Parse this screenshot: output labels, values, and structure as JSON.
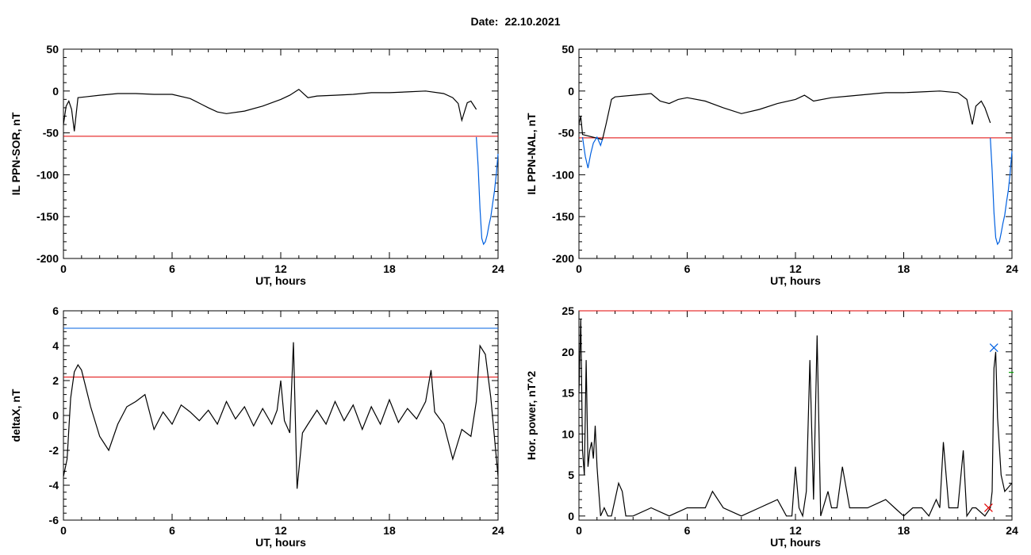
{
  "header": {
    "date_label": "Date:",
    "date_value": "22.10.2021"
  },
  "chart_data": [
    {
      "id": "p1",
      "type": "line",
      "xlabel": "UT, hours",
      "ylabel": "IL PPN-SOR, nT",
      "xlim": [
        0,
        24
      ],
      "ylim": [
        -200,
        50
      ],
      "xticks": [
        0,
        6,
        12,
        18,
        24
      ],
      "yticks": [
        -200,
        -150,
        -100,
        -50,
        0,
        50
      ],
      "thresholds": [
        {
          "y": -54,
          "color": "#e00000"
        }
      ],
      "series": [
        {
          "color": "#000000",
          "x": [
            0,
            0.15,
            0.3,
            0.45,
            0.6,
            0.8,
            1.2,
            2,
            3,
            4,
            5,
            6,
            7,
            8,
            8.5,
            9,
            10,
            11,
            12,
            12.5,
            13,
            13.5,
            14,
            15,
            16,
            17,
            18,
            19,
            20,
            21,
            21.5,
            21.8,
            22,
            22.3,
            22.5,
            22.8
          ],
          "y": [
            -40,
            -18,
            -12,
            -22,
            -48,
            -8,
            -7,
            -5,
            -3,
            -3,
            -4,
            -4,
            -9,
            -20,
            -25,
            -27,
            -24,
            -18,
            -10,
            -5,
            2,
            -8,
            -6,
            -5,
            -4,
            -2,
            -2,
            -1,
            0,
            -3,
            -8,
            -15,
            -35,
            -14,
            -12,
            -22
          ]
        },
        {
          "color": "#0060e0",
          "x": [
            22.8,
            22.9,
            23.0,
            23.1,
            23.2,
            23.3,
            23.4,
            23.5,
            23.6,
            23.7,
            23.8,
            23.9,
            24
          ],
          "y": [
            -55,
            -90,
            -140,
            -176,
            -183,
            -180,
            -172,
            -160,
            -150,
            -135,
            -120,
            -100,
            -75
          ]
        }
      ]
    },
    {
      "id": "p2",
      "type": "line",
      "xlabel": "UT, hours",
      "ylabel": "IL PPN-NAL, nT",
      "xlim": [
        0,
        24
      ],
      "ylim": [
        -200,
        50
      ],
      "xticks": [
        0,
        6,
        12,
        18,
        24
      ],
      "yticks": [
        -200,
        -150,
        -100,
        -50,
        0,
        50
      ],
      "thresholds": [
        {
          "y": -56,
          "color": "#e00000"
        }
      ],
      "series": [
        {
          "color": "#000000",
          "x": [
            0,
            0.1,
            0.2,
            1.3,
            1.5,
            1.8,
            2,
            3,
            4,
            4.5,
            5,
            5.5,
            6,
            7,
            8,
            9,
            10,
            11,
            12,
            12.5,
            13,
            14,
            15,
            16,
            17,
            18,
            19,
            20,
            21,
            21.5,
            21.8,
            22,
            22.3,
            22.5,
            22.8
          ],
          "y": [
            -40,
            -30,
            -52,
            -58,
            -40,
            -10,
            -7,
            -5,
            -3,
            -12,
            -15,
            -10,
            -8,
            -12,
            -20,
            -27,
            -22,
            -15,
            -10,
            -5,
            -12,
            -8,
            -6,
            -4,
            -2,
            -2,
            -1,
            0,
            -2,
            -10,
            -40,
            -18,
            -12,
            -20,
            -38
          ]
        },
        {
          "color": "#0060e0",
          "x": [
            0.2,
            0.35,
            0.5,
            0.65,
            0.8,
            1.0,
            1.2,
            1.3
          ],
          "y": [
            -55,
            -78,
            -92,
            -75,
            -62,
            -55,
            -65,
            -58
          ]
        },
        {
          "color": "#0060e0",
          "x": [
            22.8,
            22.9,
            23.0,
            23.1,
            23.2,
            23.3,
            23.4,
            23.5,
            23.6,
            23.7,
            23.8,
            23.9,
            24
          ],
          "y": [
            -56,
            -95,
            -145,
            -175,
            -183,
            -180,
            -170,
            -158,
            -148,
            -132,
            -118,
            -98,
            -72
          ]
        }
      ]
    },
    {
      "id": "p3",
      "type": "line",
      "xlabel": "UT, hours",
      "ylabel": "deltaX, nT",
      "xlim": [
        0,
        24
      ],
      "ylim": [
        -6,
        6
      ],
      "xticks": [
        0,
        6,
        12,
        18,
        24
      ],
      "yticks": [
        -6,
        -4,
        -2,
        0,
        2,
        4,
        6
      ],
      "thresholds": [
        {
          "y": 5.0,
          "color": "#0060e0"
        },
        {
          "y": 2.2,
          "color": "#e00000"
        }
      ],
      "series": [
        {
          "color": "#000000",
          "x": [
            0,
            0.2,
            0.4,
            0.6,
            0.8,
            1.0,
            1.5,
            2.0,
            2.5,
            3.0,
            3.5,
            4.0,
            4.5,
            5.0,
            5.5,
            6.0,
            6.5,
            7.0,
            7.5,
            8.0,
            8.5,
            9.0,
            9.5,
            10.0,
            10.5,
            11.0,
            11.5,
            11.8,
            12.0,
            12.2,
            12.5,
            12.7,
            12.9,
            13.2,
            13.5,
            14.0,
            14.5,
            15.0,
            15.5,
            16.0,
            16.5,
            17.0,
            17.5,
            18.0,
            18.5,
            19.0,
            19.5,
            20.0,
            20.3,
            20.5,
            21.0,
            21.5,
            22.0,
            22.5,
            22.8,
            23.0,
            23.3,
            23.6,
            24
          ],
          "y": [
            -3.5,
            -2.5,
            1.0,
            2.5,
            2.9,
            2.6,
            0.5,
            -1.2,
            -2.0,
            -0.5,
            0.5,
            0.8,
            1.2,
            -0.8,
            0.2,
            -0.5,
            0.6,
            0.2,
            -0.3,
            0.3,
            -0.5,
            0.8,
            -0.2,
            0.5,
            -0.6,
            0.4,
            -0.5,
            0.3,
            2.0,
            -0.3,
            -1.0,
            4.2,
            -4.2,
            -1.0,
            -0.5,
            0.3,
            -0.5,
            0.8,
            -0.3,
            0.6,
            -0.8,
            0.5,
            -0.5,
            0.9,
            -0.4,
            0.4,
            -0.2,
            0.8,
            2.6,
            0.2,
            -0.5,
            -2.5,
            -0.8,
            -1.2,
            0.8,
            4.0,
            3.5,
            1.0,
            -3.5
          ]
        }
      ]
    },
    {
      "id": "p4",
      "type": "line",
      "xlabel": "UT, hours",
      "ylabel": "Hor. power, nT^2",
      "xlim": [
        0,
        24
      ],
      "ylim": [
        -0.5,
        25
      ],
      "xticks": [
        0,
        6,
        12,
        18,
        24
      ],
      "yticks": [
        0,
        5,
        10,
        15,
        20,
        25
      ],
      "thresholds": [
        {
          "y": 25,
          "color": "#e00000"
        }
      ],
      "series": [
        {
          "color": "#000000",
          "x": [
            0,
            0.1,
            0.2,
            0.3,
            0.4,
            0.5,
            0.6,
            0.7,
            0.8,
            0.9,
            1.0,
            1.1,
            1.2,
            1.4,
            1.6,
            1.8,
            2.0,
            2.2,
            2.4,
            2.6,
            3.0,
            4.0,
            5.0,
            6.0,
            7.0,
            7.4,
            8.0,
            9.0,
            10.0,
            11.0,
            11.5,
            11.8,
            12.0,
            12.2,
            12.4,
            12.6,
            12.8,
            13.0,
            13.2,
            13.4,
            13.8,
            14.0,
            14.3,
            14.6,
            15.0,
            16.0,
            17.0,
            17.5,
            18.0,
            18.5,
            19.0,
            19.4,
            19.8,
            20.0,
            20.2,
            20.5,
            21.0,
            21.3,
            21.5,
            21.8,
            22.0,
            22.5,
            22.8,
            22.9,
            23.0,
            23.1,
            23.2,
            23.4,
            23.6,
            24
          ],
          "y": [
            15,
            24,
            8,
            5,
            19,
            6,
            8,
            9,
            7,
            11,
            6,
            3,
            0,
            1,
            0,
            0,
            2,
            4,
            3,
            0,
            0,
            1,
            0,
            1,
            1,
            3,
            1,
            0,
            1,
            2,
            0,
            0,
            6,
            1,
            0,
            3,
            19,
            2,
            22,
            0,
            3,
            1,
            1,
            6,
            1,
            1,
            2,
            1,
            0,
            1,
            1,
            0,
            2,
            1,
            9,
            1,
            1,
            8,
            0,
            1,
            1,
            0,
            1,
            3,
            18,
            20,
            12,
            5,
            3,
            4
          ]
        }
      ],
      "markers": [
        {
          "x": 23.0,
          "y": 20.5,
          "symbol": "x",
          "color": "#0060e0"
        },
        {
          "x": 22.7,
          "y": 1.0,
          "symbol": "x",
          "color": "#e00000"
        },
        {
          "x": 24.0,
          "y": 17.5,
          "symbol": "dash",
          "color": "#00a000"
        }
      ]
    }
  ]
}
